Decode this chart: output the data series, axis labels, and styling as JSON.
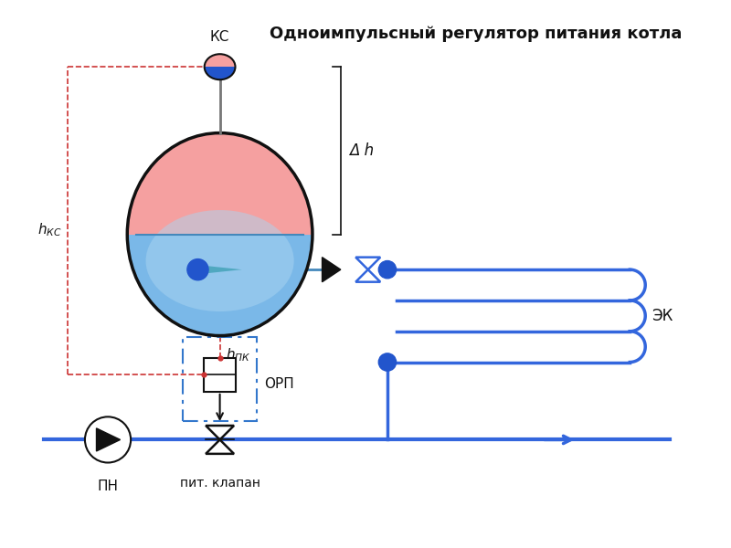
{
  "title": "Одноимпульсный регулятор питания котла",
  "title_fontsize": 13,
  "title_fontweight": "bold",
  "bg_color": "#ffffff",
  "blue": "#2255cc",
  "blue_line": "#3366dd",
  "red_dashed": "#cc3333",
  "dark": "#111111",
  "pink": "#f5a0a0",
  "light_blue": "#7ab8e8",
  "label_KS": "КС",
  "label_PN": "ПН",
  "label_valve": "пит. клапан",
  "label_ORP": "ОРП",
  "label_EK": "ЭК",
  "label_dh": "Δ h"
}
